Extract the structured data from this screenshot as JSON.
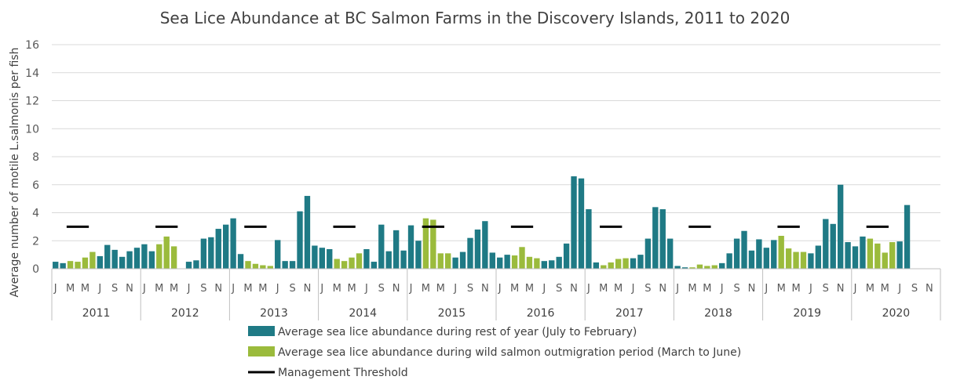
{
  "chart_data": {
    "type": "bar",
    "title": "Sea Lice Abundance at BC Salmon Farms in the Discovery Islands, 2011 to 2020",
    "ylabel": "Average number of motile L.salmonis per fish",
    "ylim": [
      0,
      16
    ],
    "yticks": [
      "0",
      "2",
      "4",
      "6",
      "8",
      "10",
      "12",
      "14",
      "16"
    ],
    "grid": true,
    "legend_position": "bottom",
    "years": [
      "2011",
      "2012",
      "2013",
      "2014",
      "2015",
      "2016",
      "2017",
      "2018",
      "2019",
      "2020"
    ],
    "month_labels": [
      "J",
      "",
      "M",
      "",
      "M",
      "",
      "J",
      "",
      "S",
      "",
      "N",
      ""
    ],
    "colors": {
      "rest_of_year": "#1F7A85",
      "outmigration": "#9BBB3C",
      "threshold": "#000000",
      "grid": "#D9D9D9",
      "axis": "#BFBFBF"
    },
    "outmigration_months": [
      3,
      4,
      5,
      6
    ],
    "threshold": {
      "value": 3,
      "start_month": 3,
      "end_month": 5
    },
    "values": [
      [
        0.5,
        0.4,
        0.55,
        0.5,
        0.8,
        1.2,
        0.9,
        1.7,
        1.35,
        0.85,
        1.25,
        1.5
      ],
      [
        1.75,
        1.25,
        1.75,
        2.3,
        1.6,
        0,
        0.5,
        0.6,
        2.15,
        2.25,
        2.85,
        3.15
      ],
      [
        3.6,
        1.05,
        0.55,
        0.35,
        0.25,
        0.2,
        2.05,
        0.55,
        0.55,
        4.1,
        5.2,
        1.65
      ],
      [
        1.5,
        1.4,
        0.7,
        0.55,
        0.8,
        1.1,
        1.4,
        0.5,
        3.15,
        1.25,
        2.75,
        1.3
      ],
      [
        3.1,
        2.0,
        3.6,
        3.5,
        1.1,
        1.1,
        0.8,
        1.2,
        2.2,
        2.8,
        3.4,
        1.15
      ],
      [
        0.8,
        1.0,
        0.95,
        1.55,
        0.85,
        0.75,
        0.55,
        0.6,
        0.85,
        1.8,
        6.6,
        6.45
      ],
      [
        4.25,
        0.45,
        0.25,
        0.45,
        0.7,
        0.75,
        0.75,
        1.0,
        2.15,
        4.4,
        4.25,
        2.15
      ],
      [
        0.2,
        0.1,
        0.1,
        0.3,
        0.2,
        0.25,
        0.4,
        1.1,
        2.15,
        2.7,
        1.3,
        2.1
      ],
      [
        1.5,
        2.05,
        2.35,
        1.45,
        1.2,
        1.2,
        1.1,
        1.65,
        3.55,
        3.2,
        6.0,
        1.9
      ],
      [
        1.6,
        2.3,
        2.15,
        1.8,
        1.15,
        1.9,
        1.95,
        4.55,
        null,
        null,
        null,
        null
      ]
    ],
    "legend": [
      {
        "key": "rest_of_year",
        "label": "Average sea lice abundance during rest of year (July to February)"
      },
      {
        "key": "outmigration",
        "label": "Average sea lice abundance during wild salmon outmigration period (March to June)"
      },
      {
        "key": "threshold",
        "label": "Management Threshold"
      }
    ]
  }
}
